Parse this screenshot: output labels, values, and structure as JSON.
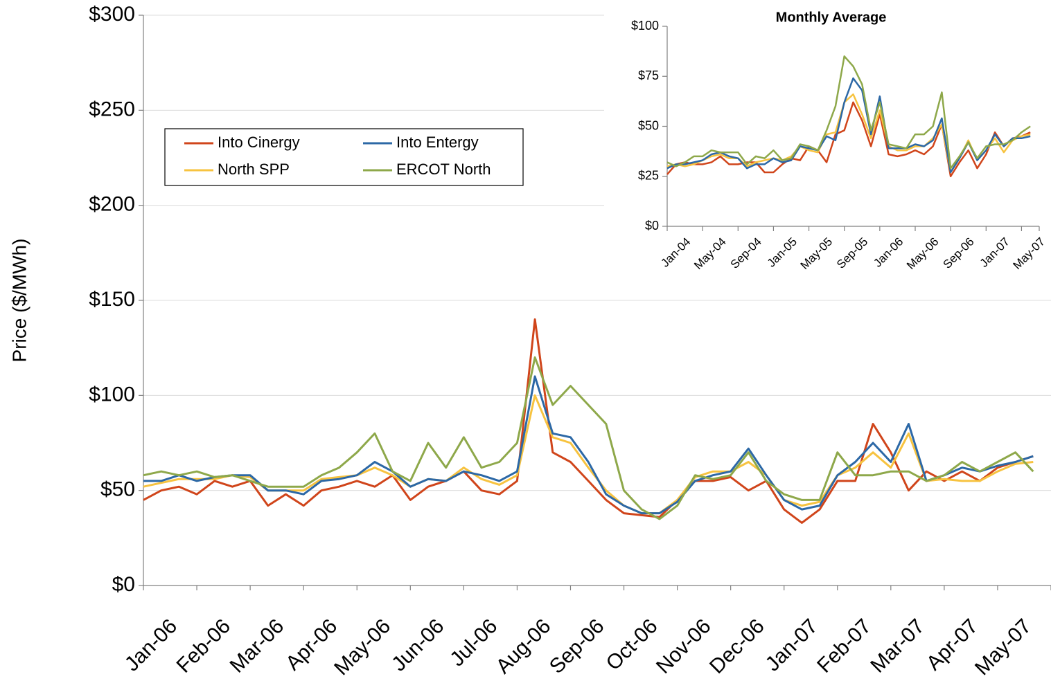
{
  "chart_data": [
    {
      "type": "line",
      "y_label": "Price ($/MWh)",
      "legend": "upper left",
      "grid": true,
      "categories": [
        "Jan-06",
        null,
        null,
        "Feb-06",
        null,
        null,
        "Mar-06",
        null,
        null,
        "Apr-06",
        null,
        null,
        "May-06",
        null,
        null,
        "Jun-06",
        null,
        null,
        "Jul-06",
        null,
        null,
        "Aug-06",
        null,
        null,
        "Sep-06",
        null,
        null,
        "Oct-06",
        null,
        null,
        "Nov-06",
        null,
        null,
        "Dec-06",
        null,
        null,
        "Jan-07",
        null,
        null,
        "Feb-07",
        null,
        null,
        "Mar-07",
        null,
        null,
        "Apr-07",
        null,
        null,
        "May-07",
        null,
        null
      ],
      "ylim": [
        0,
        300
      ],
      "yticks": [
        {
          "value": 0,
          "label": "$0"
        },
        {
          "value": 50,
          "label": "$50"
        },
        {
          "value": 100,
          "label": "$100"
        },
        {
          "value": 150,
          "label": "$150"
        },
        {
          "value": 200,
          "label": "$200"
        },
        {
          "value": 250,
          "label": "$250"
        },
        {
          "value": 300,
          "label": "$300"
        }
      ],
      "series": [
        {
          "name": "Into Cinergy",
          "color": "#d0451b",
          "values": [
            45,
            50,
            52,
            48,
            55,
            52,
            55,
            42,
            48,
            42,
            50,
            52,
            55,
            52,
            58,
            45,
            52,
            55,
            60,
            50,
            48,
            55,
            140,
            70,
            65,
            55,
            45,
            38,
            37,
            36,
            45,
            55,
            55,
            57,
            50,
            55,
            40,
            33,
            40,
            55,
            55,
            85,
            70,
            50,
            60,
            55,
            60,
            55,
            62,
            65,
            68
          ]
        },
        {
          "name": "North SPP",
          "color": "#f7c340",
          "values": [
            52,
            54,
            56,
            56,
            56,
            58,
            57,
            50,
            50,
            50,
            56,
            57,
            58,
            62,
            58,
            52,
            56,
            55,
            62,
            56,
            53,
            58,
            100,
            78,
            75,
            62,
            50,
            42,
            38,
            38,
            45,
            57,
            60,
            60,
            65,
            58,
            45,
            42,
            44,
            58,
            62,
            70,
            62,
            80,
            55,
            56,
            55,
            55,
            60,
            64,
            65
          ]
        },
        {
          "name": "Into Entergy",
          "color": "#2c68a6",
          "values": [
            55,
            55,
            58,
            55,
            57,
            58,
            58,
            50,
            50,
            48,
            55,
            56,
            58,
            65,
            60,
            52,
            56,
            55,
            60,
            58,
            55,
            60,
            110,
            80,
            78,
            65,
            48,
            42,
            38,
            38,
            44,
            55,
            58,
            60,
            72,
            58,
            45,
            40,
            42,
            58,
            65,
            75,
            65,
            85,
            55,
            58,
            62,
            60,
            63,
            65,
            68
          ]
        },
        {
          "name": "ERCOT North",
          "color": "#8ea84a",
          "values": [
            58,
            60,
            58,
            60,
            57,
            58,
            55,
            52,
            52,
            52,
            58,
            62,
            70,
            80,
            60,
            55,
            75,
            62,
            78,
            62,
            65,
            75,
            120,
            95,
            105,
            95,
            85,
            50,
            40,
            35,
            42,
            58,
            56,
            58,
            70,
            55,
            48,
            45,
            45,
            70,
            58,
            58,
            60,
            60,
            55,
            58,
            65,
            60,
            65,
            70,
            60
          ]
        }
      ]
    },
    {
      "type": "line",
      "title": "Monthly Average",
      "grid": false,
      "categories": [
        "Jan-04",
        null,
        null,
        null,
        "May-04",
        null,
        null,
        null,
        "Sep-04",
        null,
        null,
        null,
        "Jan-05",
        null,
        null,
        null,
        "May-05",
        null,
        null,
        null,
        "Sep-05",
        null,
        null,
        null,
        "Jan-06",
        null,
        null,
        null,
        "May-06",
        null,
        null,
        null,
        "Sep-06",
        null,
        null,
        null,
        "Jan-07",
        null,
        null,
        null,
        "May-07",
        null
      ],
      "ylim": [
        0,
        100
      ],
      "yticks": [
        {
          "value": 0,
          "label": "$0"
        },
        {
          "value": 25,
          "label": "$25"
        },
        {
          "value": 50,
          "label": "$50"
        },
        {
          "value": 75,
          "label": "$75"
        },
        {
          "value": 100,
          "label": "$100"
        }
      ],
      "series": [
        {
          "name": "Into Cinergy",
          "color": "#d0451b",
          "values": [
            26,
            31,
            32,
            31,
            31,
            32,
            35,
            31,
            31,
            32,
            32,
            27,
            27,
            31,
            34,
            33,
            40,
            38,
            32,
            46,
            48,
            62,
            53,
            40,
            56,
            36,
            35,
            36,
            38,
            36,
            40,
            51,
            25,
            32,
            38,
            29,
            36,
            47,
            40,
            44,
            45,
            47
          ]
        },
        {
          "name": "North SPP",
          "color": "#f7c340",
          "values": [
            30,
            31,
            30,
            31,
            33,
            35,
            36,
            34,
            34,
            30,
            32,
            33,
            34,
            33,
            35,
            40,
            38,
            37,
            46,
            47,
            62,
            66,
            56,
            44,
            58,
            40,
            38,
            38,
            40,
            40,
            44,
            51,
            27,
            34,
            43,
            33,
            38,
            44,
            37,
            43,
            45,
            46
          ]
        },
        {
          "name": "Into Entergy",
          "color": "#2c68a6",
          "values": [
            29,
            31,
            31,
            32,
            33,
            36,
            37,
            35,
            34,
            29,
            31,
            31,
            34,
            32,
            33,
            40,
            39,
            38,
            45,
            43,
            62,
            74,
            68,
            46,
            65,
            39,
            39,
            39,
            41,
            40,
            43,
            54,
            27,
            34,
            42,
            33,
            38,
            46,
            40,
            44,
            44,
            45
          ]
        },
        {
          "name": "ERCOT North",
          "color": "#8ea84a",
          "values": [
            32,
            30,
            32,
            35,
            35,
            38,
            37,
            37,
            37,
            31,
            35,
            34,
            38,
            33,
            34,
            41,
            40,
            38,
            48,
            60,
            85,
            80,
            71,
            48,
            62,
            41,
            40,
            39,
            46,
            46,
            50,
            67,
            29,
            35,
            42,
            34,
            40,
            41,
            41,
            43,
            47,
            50
          ]
        }
      ]
    }
  ]
}
